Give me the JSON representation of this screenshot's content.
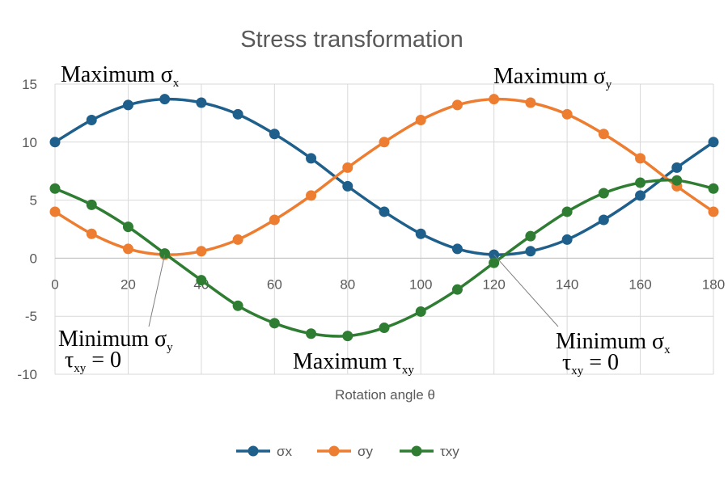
{
  "chart_data": {
    "type": "line",
    "title": "Stress transformation",
    "xlabel": "Rotation angle θ",
    "ylabel": "",
    "xlim": [
      0,
      180
    ],
    "ylim": [
      -10,
      15
    ],
    "x_ticks": [
      0,
      20,
      40,
      60,
      80,
      100,
      120,
      140,
      160,
      180
    ],
    "y_ticks": [
      -10,
      -5,
      0,
      5,
      10,
      15
    ],
    "grid": true,
    "legend_position": "bottom",
    "x": [
      0,
      10,
      20,
      30,
      40,
      50,
      60,
      70,
      80,
      90,
      100,
      110,
      120,
      130,
      140,
      150,
      160,
      170,
      180
    ],
    "series": [
      {
        "name": "σx",
        "color": "#1f5f8b",
        "values": [
          10.0,
          11.9,
          13.2,
          13.7,
          13.4,
          12.4,
          10.7,
          8.6,
          6.2,
          4.0,
          2.1,
          0.8,
          0.3,
          0.6,
          1.6,
          3.3,
          5.4,
          7.8,
          10.0
        ]
      },
      {
        "name": "σy",
        "color": "#ed7d31",
        "values": [
          4.0,
          2.1,
          0.8,
          0.3,
          0.6,
          1.6,
          3.3,
          5.4,
          7.8,
          10.0,
          11.9,
          13.2,
          13.7,
          13.4,
          12.4,
          10.7,
          8.6,
          6.2,
          4.0
        ]
      },
      {
        "name": "τxy",
        "color": "#2e7d32",
        "values": [
          6.0,
          4.6,
          2.7,
          0.4,
          -1.9,
          -4.1,
          -5.6,
          -6.5,
          -6.7,
          -6.0,
          -4.6,
          -2.7,
          -0.4,
          1.9,
          4.0,
          5.6,
          6.5,
          6.7,
          6.0
        ]
      }
    ],
    "annotations": [
      {
        "id": "max-sx",
        "main": "Maximum σ",
        "sub": "x",
        "second_main": "",
        "second_sub": "",
        "tail": ""
      },
      {
        "id": "max-sy",
        "main": "Maximum σ",
        "sub": "y",
        "second_main": "",
        "second_sub": "",
        "tail": ""
      },
      {
        "id": "min-sy",
        "main": "Minimum σ",
        "sub": "y",
        "second_main": "τ",
        "second_sub": "xy",
        "tail": " = 0"
      },
      {
        "id": "max-txy",
        "main": "Maximum τ",
        "sub": "xy",
        "second_main": "",
        "second_sub": "",
        "tail": ""
      },
      {
        "id": "min-sx",
        "main": "Minimum σ",
        "sub": "x",
        "second_main": "τ",
        "second_sub": "xy",
        "tail": " = 0"
      }
    ]
  }
}
